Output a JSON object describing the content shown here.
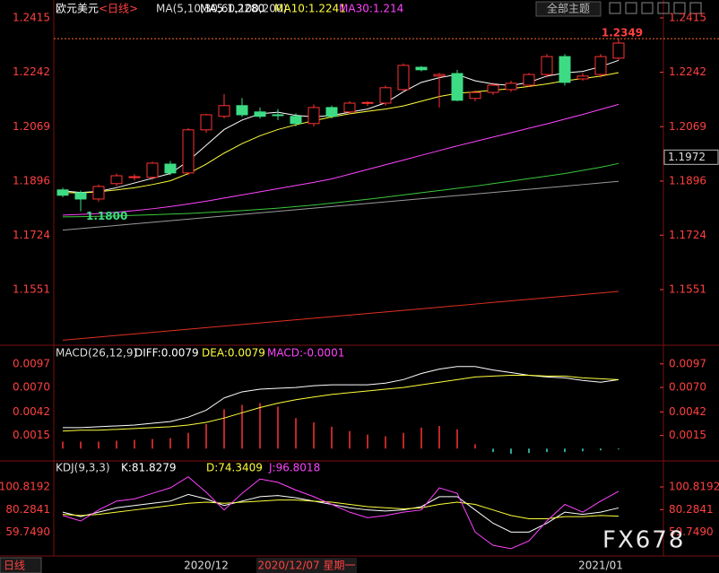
{
  "header": {
    "symbol": "欧元美元",
    "period": "<日线>",
    "theme_button": "全部主题"
  },
  "watermark": "FX678",
  "chart_data": [
    {
      "type": "candlestick",
      "indicator": "MA(5,10,30,60,100,200)",
      "legend": [
        {
          "label": "MA5:1.2280",
          "color": "#ffffff"
        },
        {
          "label": "MA10:1.2241",
          "color": "#ffff3c"
        },
        {
          "label": "MA30:1.214",
          "color": "#ff44ff"
        }
      ],
      "open": [
        1.1868,
        1.1859,
        1.1839,
        1.1888,
        1.1908,
        1.1908,
        1.195,
        1.1922,
        1.2059,
        1.2102,
        1.2136,
        1.2116,
        1.2107,
        1.2102,
        1.2079,
        1.213,
        1.2116,
        1.2144,
        1.2144,
        1.2187,
        1.2258,
        1.223,
        1.2238,
        1.2159,
        1.2178,
        1.2187,
        1.2201,
        1.2235,
        1.2292,
        1.2221,
        1.2235,
        1.2287
      ],
      "high": [
        1.1875,
        1.1866,
        1.1885,
        1.192,
        1.1918,
        1.1958,
        1.196,
        1.2065,
        1.211,
        1.2173,
        1.216,
        1.213,
        1.2125,
        1.2112,
        1.214,
        1.2136,
        1.215,
        1.215,
        1.22,
        1.227,
        1.2262,
        1.224,
        1.225,
        1.2185,
        1.221,
        1.2215,
        1.224,
        1.23,
        1.23,
        1.224,
        1.23,
        1.2349
      ],
      "low": [
        1.1845,
        1.18,
        1.183,
        1.188,
        1.1898,
        1.19,
        1.1915,
        1.1915,
        1.205,
        1.2095,
        1.21,
        1.2095,
        1.209,
        1.207,
        1.207,
        1.2095,
        1.211,
        1.2135,
        1.2136,
        1.218,
        1.2245,
        1.213,
        1.215,
        1.215,
        1.217,
        1.218,
        1.2195,
        1.2225,
        1.22,
        1.2215,
        1.2225,
        1.228
      ],
      "close": [
        1.1851,
        1.1839,
        1.1879,
        1.1913,
        1.191,
        1.1953,
        1.1922,
        1.2059,
        1.2107,
        1.2136,
        1.2107,
        1.2102,
        1.2105,
        1.2079,
        1.213,
        1.2102,
        1.2144,
        1.2146,
        1.2193,
        1.2264,
        1.225,
        1.2235,
        1.2153,
        1.2178,
        1.2201,
        1.2207,
        1.2235,
        1.2292,
        1.221,
        1.223,
        1.2292,
        1.2335
      ],
      "up_color": "#ff3232",
      "down_color": "#3ddc84",
      "series": [
        {
          "color": "#ffffff",
          "values": [
            1.1865,
            1.186,
            1.1863,
            1.1875,
            1.189,
            1.1905,
            1.192,
            1.196,
            1.201,
            1.206,
            1.209,
            1.211,
            1.2115,
            1.2105,
            1.21,
            1.2105,
            1.2115,
            1.2125,
            1.2145,
            1.218,
            1.221,
            1.2225,
            1.2235,
            1.2215,
            1.2205,
            1.22,
            1.221,
            1.223,
            1.224,
            1.2245,
            1.226,
            1.228
          ]
        },
        {
          "color": "#ffff3c",
          "values": [
            1.186,
            1.1858,
            1.1862,
            1.1868,
            1.1875,
            1.1885,
            1.1897,
            1.192,
            1.195,
            1.1985,
            1.2015,
            1.204,
            1.206,
            1.2075,
            1.2088,
            1.21,
            1.211,
            1.2118,
            1.2125,
            1.2135,
            1.215,
            1.2165,
            1.2175,
            1.218,
            1.2185,
            1.219,
            1.2197,
            1.2205,
            1.2215,
            1.2222,
            1.223,
            1.2241
          ]
        },
        {
          "color": "#ff44ff",
          "values": [
            1.1788,
            1.179,
            1.1793,
            1.1797,
            1.1802,
            1.1808,
            1.1815,
            1.1823,
            1.1832,
            1.1842,
            1.1852,
            1.1862,
            1.1872,
            1.1882,
            1.1892,
            1.1903,
            1.1918,
            1.1933,
            1.1948,
            1.1963,
            1.1978,
            1.1993,
            1.2008,
            1.2022,
            1.2036,
            1.205,
            1.2064,
            1.2078,
            1.2093,
            1.2108,
            1.2124,
            1.214
          ]
        },
        {
          "color": "#3cc83c",
          "values": [
            1.1782,
            1.1783,
            1.1784,
            1.1785,
            1.1787,
            1.1789,
            1.1791,
            1.1793,
            1.1796,
            1.1799,
            1.1802,
            1.1806,
            1.181,
            1.1815,
            1.182,
            1.1826,
            1.1832,
            1.1838,
            1.1845,
            1.1852,
            1.1859,
            1.1866,
            1.1873,
            1.188,
            1.1888,
            1.1896,
            1.1904,
            1.1912,
            1.192,
            1.193,
            1.194,
            1.1952
          ]
        },
        {
          "color": "#9a9a9a",
          "values": [
            1.174,
            1.1745,
            1.175,
            1.1755,
            1.176,
            1.1765,
            1.177,
            1.1775,
            1.178,
            1.1785,
            1.179,
            1.1795,
            1.18,
            1.1805,
            1.181,
            1.1815,
            1.182,
            1.1825,
            1.183,
            1.1835,
            1.184,
            1.1845,
            1.185,
            1.1855,
            1.186,
            1.1865,
            1.187,
            1.1875,
            1.188,
            1.1885,
            1.189,
            1.1895
          ]
        },
        {
          "color": "#e03020",
          "values": [
            1.139,
            1.1395,
            1.14,
            1.1405,
            1.141,
            1.1415,
            1.142,
            1.1425,
            1.143,
            1.1435,
            1.144,
            1.1445,
            1.145,
            1.1455,
            1.146,
            1.1465,
            1.147,
            1.1475,
            1.148,
            1.1485,
            1.149,
            1.1495,
            1.15,
            1.1505,
            1.151,
            1.1515,
            1.152,
            1.1525,
            1.153,
            1.1535,
            1.154,
            1.1545
          ]
        }
      ],
      "high_label": 1.2349,
      "low_label": {
        "value": 1.18,
        "label": "1.1800"
      },
      "cursor_price": 1.1972,
      "ylim": [
        1.1374,
        1.2432
      ],
      "yticks": [
        1.1551,
        1.1724,
        1.1896,
        1.2069,
        1.2242,
        1.2415
      ]
    },
    {
      "type": "macd",
      "indicator": "MACD(26,12,9)",
      "legend": [
        {
          "label": "DIFF:0.0079",
          "color": "#ffffff"
        },
        {
          "label": "DEA:0.0079",
          "color": "#ffff3c"
        },
        {
          "label": "MACD:-0.0001",
          "color": "#ff44ff"
        }
      ],
      "values": [
        0.0008,
        0.0008,
        0.0008,
        0.0009,
        0.001,
        0.0011,
        0.0012,
        0.0018,
        0.0028,
        0.0045,
        0.005,
        0.0052,
        0.0048,
        0.0035,
        0.003,
        0.0025,
        0.002,
        0.0016,
        0.0014,
        0.0018,
        0.0024,
        0.0026,
        0.0022,
        0.0005,
        -0.0004,
        -0.0006,
        -0.0005,
        -0.0004,
        -0.0004,
        -0.0003,
        -0.0002,
        -0.0001
      ],
      "up_color": "#ff3232",
      "down_color": "#3ddcc8",
      "series": [
        {
          "color": "#ffffff",
          "values": [
            0.0024,
            0.0024,
            0.0025,
            0.0026,
            0.0027,
            0.0029,
            0.0031,
            0.0036,
            0.0044,
            0.0058,
            0.0065,
            0.0068,
            0.0069,
            0.007,
            0.0072,
            0.0073,
            0.0073,
            0.0073,
            0.0075,
            0.0079,
            0.0086,
            0.0091,
            0.0094,
            0.0094,
            0.009,
            0.0087,
            0.0084,
            0.0082,
            0.0081,
            0.0078,
            0.0076,
            0.0079
          ]
        },
        {
          "color": "#ffff3c",
          "values": [
            0.002,
            0.0021,
            0.0021,
            0.0022,
            0.0023,
            0.0024,
            0.0025,
            0.0027,
            0.003,
            0.0035,
            0.0041,
            0.0047,
            0.0052,
            0.0056,
            0.0059,
            0.0062,
            0.0064,
            0.0066,
            0.0068,
            0.007,
            0.0073,
            0.0076,
            0.0079,
            0.0082,
            0.0083,
            0.0084,
            0.0084,
            0.0083,
            0.0083,
            0.0081,
            0.008,
            0.0079
          ]
        }
      ],
      "ylim": [
        -0.001,
        0.0105
      ],
      "yticks": [
        0.0015,
        0.0042,
        {
          "value": 0.007,
          "label": "0.0070"
        },
        0.0097
      ]
    },
    {
      "type": "line",
      "indicator": "KDJ(9,3,3)",
      "legend": [
        {
          "label": "K:81.8279",
          "color": "#ffffff"
        },
        {
          "label": "D:74.3409",
          "color": "#ffff3c"
        },
        {
          "label": "J:96.8018",
          "color": "#ff44ff"
        }
      ],
      "series": [
        {
          "color": "#ffffff",
          "values": [
            78,
            74,
            78,
            82,
            84,
            86,
            88,
            94,
            90,
            84,
            88,
            92,
            93,
            91,
            88,
            85,
            82,
            80,
            79,
            80,
            83,
            92,
            92,
            80,
            68,
            60,
            60,
            68,
            78,
            76,
            78,
            81.8279
          ]
        },
        {
          "color": "#ffff3c",
          "values": [
            76,
            75,
            76,
            78,
            80,
            82,
            84,
            86,
            87,
            86,
            87,
            88,
            89,
            89,
            88,
            87,
            85,
            83,
            82,
            81,
            82,
            85,
            87,
            85,
            80,
            75,
            72,
            72,
            74,
            74,
            75,
            74.3409
          ]
        },
        {
          "color": "#ff44ff",
          "values": [
            75,
            70,
            80,
            88,
            90,
            95,
            100,
            110,
            96,
            80,
            95,
            108,
            105,
            98,
            92,
            85,
            78,
            73,
            75,
            78,
            80,
            100,
            95,
            60,
            48,
            45,
            52,
            70,
            85,
            78,
            88,
            96.8018
          ]
        }
      ],
      "ylim": [
        40,
        113
      ],
      "yticks": [
        {
          "value": 59.749,
          "label": "59.7490"
        },
        80.2841,
        100.8192
      ],
      "period_button": "日线",
      "cursor_label": "2020/12/07 星期一",
      "categories": [
        null,
        null,
        null,
        null,
        null,
        null,
        null,
        null,
        "2020/12",
        null,
        null,
        null,
        null,
        null,
        null,
        null,
        null,
        null,
        null,
        null,
        null,
        null,
        null,
        null,
        null,
        null,
        null,
        null,
        null,
        null,
        "2021/01",
        null
      ]
    }
  ]
}
